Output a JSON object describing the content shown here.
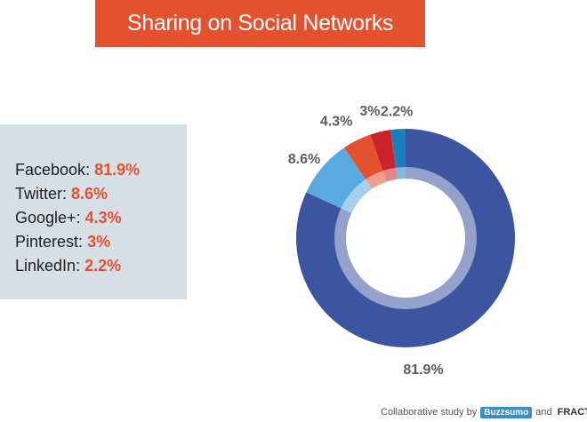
{
  "title": "Sharing on Social Networks",
  "legend": [
    {
      "name": "Facebook",
      "value": "81.9%"
    },
    {
      "name": "Twitter",
      "value": "8.6%"
    },
    {
      "name": "Google+",
      "value": "4.3%"
    },
    {
      "name": "Pinterest",
      "value": "3%"
    },
    {
      "name": "LinkedIn",
      "value": "2.2%"
    }
  ],
  "footer": {
    "text": "Collaborative study by",
    "buzzsumo": "Buzzsumo",
    "and": "and",
    "fractl": "FRACTL"
  },
  "chart_data": {
    "type": "pie",
    "title": "Sharing on Social Networks",
    "donut": true,
    "categories": [
      "Facebook",
      "Twitter",
      "Google+",
      "Pinterest",
      "LinkedIn"
    ],
    "values": [
      81.9,
      8.6,
      4.3,
      3,
      2.2
    ],
    "labels": [
      "81.9%",
      "8.6%",
      "4.3%",
      "3%",
      "2.2%"
    ],
    "colors": [
      "#3b55a0",
      "#5aa9e0",
      "#e4512f",
      "#cc2229",
      "#1a7fc0"
    ],
    "start": "12 o'clock",
    "direction": "clockwise",
    "legend_position": "left"
  }
}
